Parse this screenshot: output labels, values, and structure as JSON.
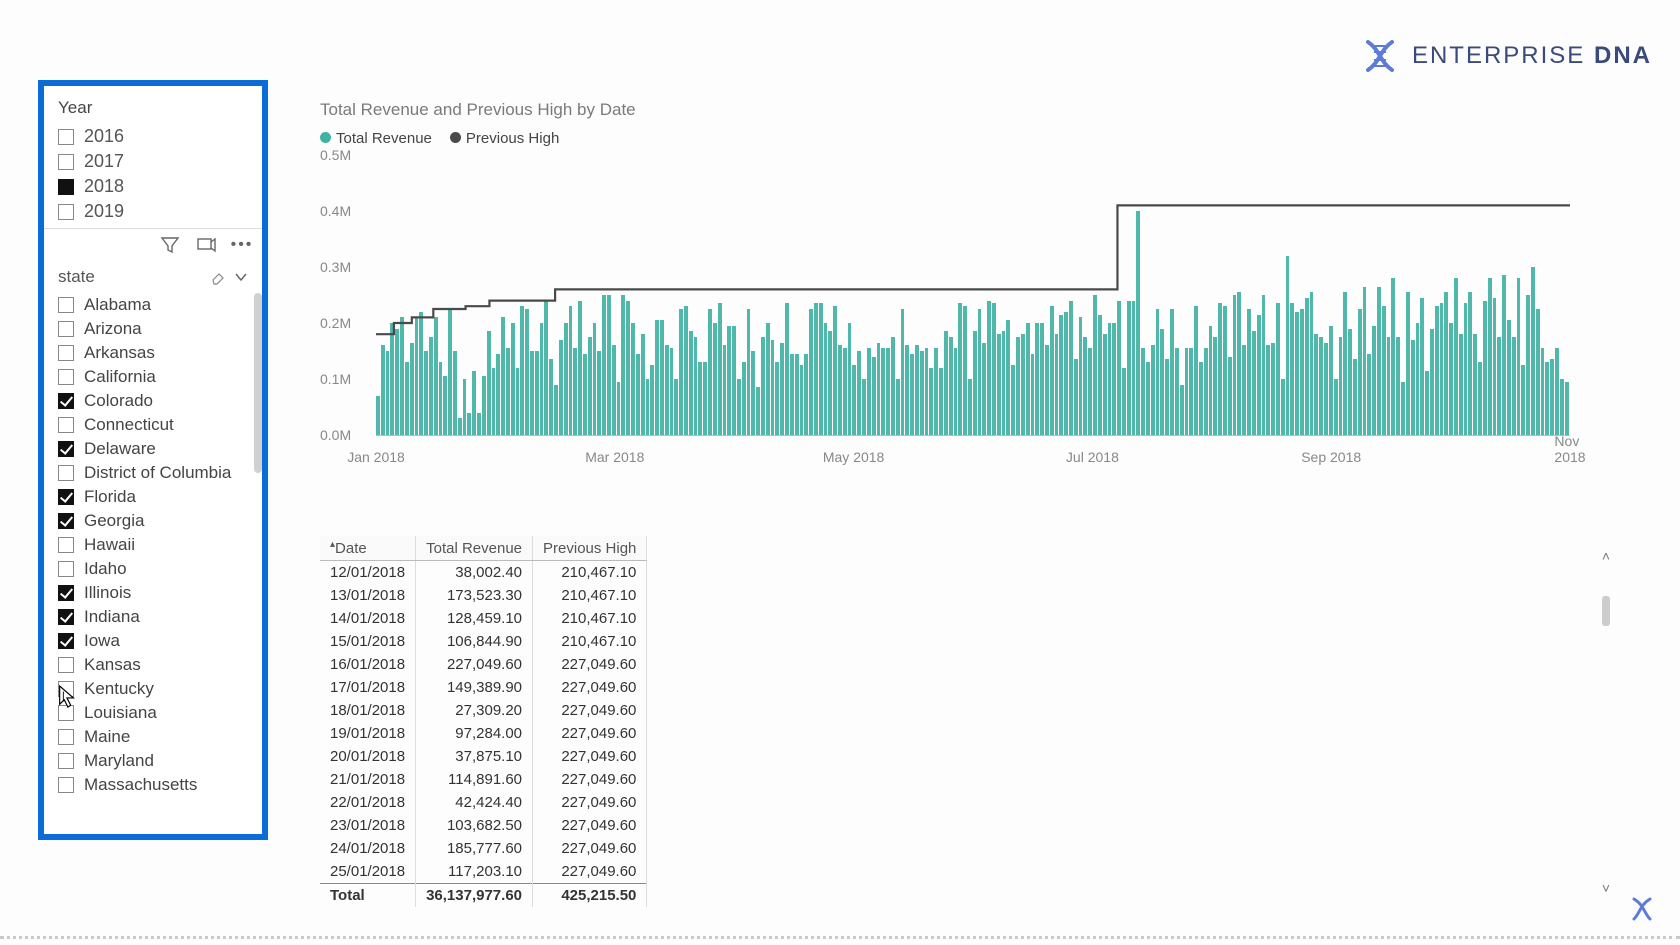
{
  "brand": {
    "word1": "ENTERPRISE",
    "word2": "DNA",
    "color": "#3a4a7a"
  },
  "slicers": {
    "year": {
      "title": "Year",
      "items": [
        {
          "label": "2016",
          "state": "empty"
        },
        {
          "label": "2017",
          "state": "empty"
        },
        {
          "label": "2018",
          "state": "filled"
        },
        {
          "label": "2019",
          "state": "empty"
        }
      ]
    },
    "state": {
      "title": "state",
      "items": [
        {
          "label": "Alabama",
          "checked": false
        },
        {
          "label": "Arizona",
          "checked": false
        },
        {
          "label": "Arkansas",
          "checked": false
        },
        {
          "label": "California",
          "checked": false
        },
        {
          "label": "Colorado",
          "checked": true
        },
        {
          "label": "Connecticut",
          "checked": false
        },
        {
          "label": "Delaware",
          "checked": true
        },
        {
          "label": "District of Columbia",
          "checked": false
        },
        {
          "label": "Florida",
          "checked": true
        },
        {
          "label": "Georgia",
          "checked": true
        },
        {
          "label": "Hawaii",
          "checked": false
        },
        {
          "label": "Idaho",
          "checked": false
        },
        {
          "label": "Illinois",
          "checked": true
        },
        {
          "label": "Indiana",
          "checked": true
        },
        {
          "label": "Iowa",
          "checked": true
        },
        {
          "label": "Kansas",
          "checked": false
        },
        {
          "label": "Kentucky",
          "checked": false
        },
        {
          "label": "Louisiana",
          "checked": false
        },
        {
          "label": "Maine",
          "checked": false
        },
        {
          "label": "Maryland",
          "checked": false
        },
        {
          "label": "Massachusetts",
          "checked": false
        }
      ]
    }
  },
  "chart": {
    "title": "Total Revenue and Previous High by Date",
    "type": "bar+step-line",
    "legend": [
      {
        "label": "Total Revenue",
        "color": "#3fb3a3"
      },
      {
        "label": "Previous High",
        "color": "#4a4a4a"
      }
    ],
    "y": {
      "min": 0,
      "max": 500000,
      "ticks": [
        {
          "v": 0,
          "label": "0.0M"
        },
        {
          "v": 100000,
          "label": "0.1M"
        },
        {
          "v": 200000,
          "label": "0.2M"
        },
        {
          "v": 300000,
          "label": "0.3M"
        },
        {
          "v": 400000,
          "label": "0.4M"
        },
        {
          "v": 500000,
          "label": "0.5M"
        }
      ]
    },
    "x": {
      "ticks": [
        {
          "f": 0.0,
          "label": "Jan 2018"
        },
        {
          "f": 0.2,
          "label": "Mar 2018"
        },
        {
          "f": 0.4,
          "label": "May 2018"
        },
        {
          "f": 0.6,
          "label": "Jul 2018"
        },
        {
          "f": 0.8,
          "label": "Sep 2018"
        },
        {
          "f": 1.0,
          "label": "Nov 2018"
        }
      ]
    },
    "bar_color": "#4fb8ab",
    "line_color": "#4a4a4a",
    "background_color": "#ffffff",
    "bars": [
      70000,
      160000,
      150000,
      200000,
      190000,
      210000,
      130000,
      165000,
      210000,
      220000,
      150000,
      175000,
      210000,
      130000,
      105000,
      225000,
      150000,
      30000,
      100000,
      40000,
      115000,
      40000,
      105000,
      185000,
      120000,
      145000,
      210000,
      155000,
      200000,
      120000,
      230000,
      225000,
      150000,
      150000,
      200000,
      240000,
      135000,
      90000,
      170000,
      200000,
      230000,
      155000,
      240000,
      145000,
      175000,
      200000,
      150000,
      250000,
      250000,
      160000,
      95000,
      250000,
      240000,
      200000,
      145000,
      180000,
      100000,
      125000,
      205000,
      205000,
      160000,
      155000,
      100000,
      225000,
      230000,
      185000,
      175000,
      130000,
      130000,
      225000,
      200000,
      235000,
      160000,
      195000,
      195000,
      100000,
      130000,
      225000,
      150000,
      85000,
      175000,
      200000,
      170000,
      130000,
      165000,
      235000,
      145000,
      145000,
      125000,
      145000,
      225000,
      235000,
      235000,
      200000,
      185000,
      230000,
      160000,
      155000,
      200000,
      125000,
      150000,
      100000,
      155000,
      140000,
      165000,
      155000,
      155000,
      175000,
      100000,
      225000,
      160000,
      145000,
      160000,
      150000,
      155000,
      120000,
      155000,
      120000,
      185000,
      175000,
      155000,
      235000,
      230000,
      100000,
      185000,
      225000,
      165000,
      240000,
      235000,
      180000,
      185000,
      205000,
      125000,
      175000,
      180000,
      200000,
      145000,
      200000,
      200000,
      160000,
      230000,
      180000,
      215000,
      220000,
      240000,
      135000,
      210000,
      175000,
      155000,
      250000,
      215000,
      180000,
      200000,
      200000,
      240000,
      120000,
      240000,
      240000,
      400000,
      155000,
      130000,
      160000,
      225000,
      190000,
      135000,
      225000,
      155000,
      90000,
      155000,
      155000,
      230000,
      130000,
      155000,
      195000,
      175000,
      235000,
      230000,
      140000,
      250000,
      255000,
      160000,
      225000,
      185000,
      215000,
      250000,
      160000,
      165000,
      235000,
      100000,
      320000,
      235000,
      220000,
      225000,
      245000,
      255000,
      180000,
      175000,
      165000,
      195000,
      100000,
      175000,
      255000,
      190000,
      135000,
      225000,
      265000,
      145000,
      195000,
      265000,
      230000,
      175000,
      280000,
      175000,
      95000,
      255000,
      170000,
      200000,
      245000,
      115000,
      190000,
      230000,
      235000,
      255000,
      200000,
      280000,
      180000,
      235000,
      255000,
      180000,
      130000,
      240000,
      280000,
      245000,
      175000,
      285000,
      205000,
      175000,
      280000,
      125000,
      250000,
      300000,
      225000,
      155000,
      130000,
      135000,
      155000,
      100000,
      95000
    ],
    "step_line": [
      {
        "f": 0.0,
        "v": 180000
      },
      {
        "f": 0.015,
        "v": 200000
      },
      {
        "f": 0.03,
        "v": 210000
      },
      {
        "f": 0.048,
        "v": 225000
      },
      {
        "f": 0.065,
        "v": 225000
      },
      {
        "f": 0.075,
        "v": 230000
      },
      {
        "f": 0.095,
        "v": 240000
      },
      {
        "f": 0.15,
        "v": 260000
      },
      {
        "f": 0.62,
        "v": 260000
      },
      {
        "f": 0.621,
        "v": 410000
      },
      {
        "f": 1.0,
        "v": 410000
      }
    ]
  },
  "table": {
    "columns": [
      "Date",
      "Total Revenue",
      "Previous High"
    ],
    "sort_col": 0,
    "rows": [
      [
        "12/01/2018",
        "38,002.40",
        "210,467.10"
      ],
      [
        "13/01/2018",
        "173,523.30",
        "210,467.10"
      ],
      [
        "14/01/2018",
        "128,459.10",
        "210,467.10"
      ],
      [
        "15/01/2018",
        "106,844.90",
        "210,467.10"
      ],
      [
        "16/01/2018",
        "227,049.60",
        "227,049.60"
      ],
      [
        "17/01/2018",
        "149,389.90",
        "227,049.60"
      ],
      [
        "18/01/2018",
        "27,309.20",
        "227,049.60"
      ],
      [
        "19/01/2018",
        "97,284.00",
        "227,049.60"
      ],
      [
        "20/01/2018",
        "37,875.10",
        "227,049.60"
      ],
      [
        "21/01/2018",
        "114,891.60",
        "227,049.60"
      ],
      [
        "22/01/2018",
        "42,424.40",
        "227,049.60"
      ],
      [
        "23/01/2018",
        "103,682.50",
        "227,049.60"
      ],
      [
        "24/01/2018",
        "185,777.60",
        "227,049.60"
      ],
      [
        "25/01/2018",
        "117,203.10",
        "227,049.60"
      ]
    ],
    "total": [
      "Total",
      "36,137,977.60",
      "425,215.50"
    ]
  }
}
